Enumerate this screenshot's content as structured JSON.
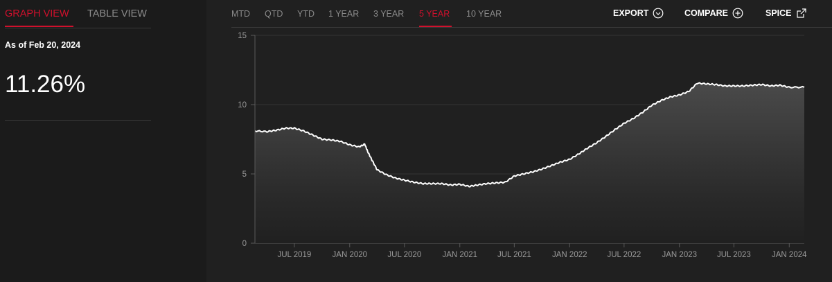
{
  "view_tabs": {
    "graph": "GRAPH VIEW",
    "table": "TABLE VIEW"
  },
  "as_of": "As of Feb 20, 2024",
  "current_value": "11.26%",
  "period_tabs": [
    "MTD",
    "QTD",
    "YTD",
    "1 YEAR",
    "3 YEAR",
    "5 YEAR",
    "10 YEAR"
  ],
  "active_period": "5 YEAR",
  "actions": {
    "export": "EXPORT",
    "compare": "COMPARE",
    "spice": "SPICE"
  },
  "colors": {
    "accent": "#d0102c",
    "line": "#ffffff",
    "background": "#1b1b1b",
    "panel": "#202020"
  },
  "icons": {
    "export": "chevron-down-circle-icon",
    "compare": "plus-circle-icon",
    "spice": "external-link-icon"
  },
  "chart_data": {
    "type": "area",
    "ylim": [
      0,
      15
    ],
    "y_ticks": [
      0,
      5,
      10,
      15
    ],
    "x_ticks": [
      "JUL 2019",
      "JAN 2020",
      "JUL 2020",
      "JAN 2021",
      "JUL 2021",
      "JAN 2022",
      "JUL 2022",
      "JAN 2023",
      "JUL 2023",
      "JAN 2024"
    ],
    "x_range": [
      "2019-02-20",
      "2024-02-20"
    ],
    "grid": true,
    "series": [
      {
        "x": [
          "2019-02-20",
          "2019-04-01",
          "2019-05-01",
          "2019-06-01",
          "2019-07-01",
          "2019-08-01",
          "2019-09-01",
          "2019-10-01",
          "2019-11-01",
          "2019-12-01",
          "2020-01-01",
          "2020-02-01",
          "2020-02-20",
          "2020-03-01",
          "2020-03-15",
          "2020-04-01",
          "2020-05-01",
          "2020-06-01",
          "2020-07-01",
          "2020-08-01",
          "2020-09-01",
          "2020-10-01",
          "2020-11-01",
          "2020-12-01",
          "2021-01-01",
          "2021-02-01",
          "2021-03-01",
          "2021-04-01",
          "2021-05-01",
          "2021-06-01",
          "2021-07-01",
          "2021-08-01",
          "2021-09-01",
          "2021-10-01",
          "2021-11-01",
          "2021-12-01",
          "2022-01-01",
          "2022-02-01",
          "2022-03-01",
          "2022-04-01",
          "2022-05-01",
          "2022-06-01",
          "2022-07-01",
          "2022-08-01",
          "2022-09-01",
          "2022-10-01",
          "2022-11-01",
          "2022-12-01",
          "2023-01-01",
          "2023-02-01",
          "2023-03-01",
          "2023-04-01",
          "2023-05-01",
          "2023-06-01",
          "2023-07-01",
          "2023-08-01",
          "2023-09-01",
          "2023-10-01",
          "2023-11-01",
          "2023-12-01",
          "2024-01-01",
          "2024-02-20"
        ],
        "values": [
          8.1,
          8.05,
          8.15,
          8.3,
          8.3,
          8.1,
          7.8,
          7.5,
          7.45,
          7.35,
          7.1,
          6.95,
          7.15,
          6.6,
          6.0,
          5.3,
          4.95,
          4.7,
          4.55,
          4.4,
          4.3,
          4.3,
          4.3,
          4.2,
          4.25,
          4.1,
          4.2,
          4.3,
          4.35,
          4.4,
          4.85,
          5.0,
          5.15,
          5.35,
          5.6,
          5.85,
          6.05,
          6.45,
          6.85,
          7.25,
          7.7,
          8.2,
          8.65,
          9.0,
          9.45,
          9.95,
          10.3,
          10.55,
          10.7,
          10.95,
          11.55,
          11.5,
          11.45,
          11.35,
          11.35,
          11.35,
          11.4,
          11.45,
          11.35,
          11.4,
          11.25,
          11.26
        ]
      }
    ]
  }
}
